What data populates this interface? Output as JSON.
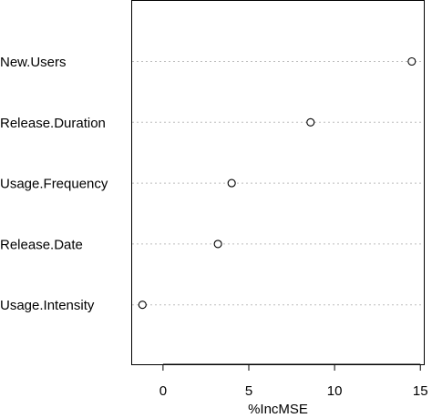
{
  "chart_data": {
    "type": "scatter",
    "categories": [
      "New.Users",
      "Release.Duration",
      "Usage.Frequency",
      "Release.Date",
      "Usage.Intensity"
    ],
    "values": [
      14.5,
      8.6,
      4.0,
      3.2,
      -1.2
    ],
    "xlabel": "%IncMSE",
    "ylabel": "",
    "xlim": [
      -1.8,
      15.2
    ],
    "xticks": [
      0,
      5,
      10,
      15
    ],
    "grid": "dotted horizontal guide lines",
    "marker": "open circle"
  }
}
